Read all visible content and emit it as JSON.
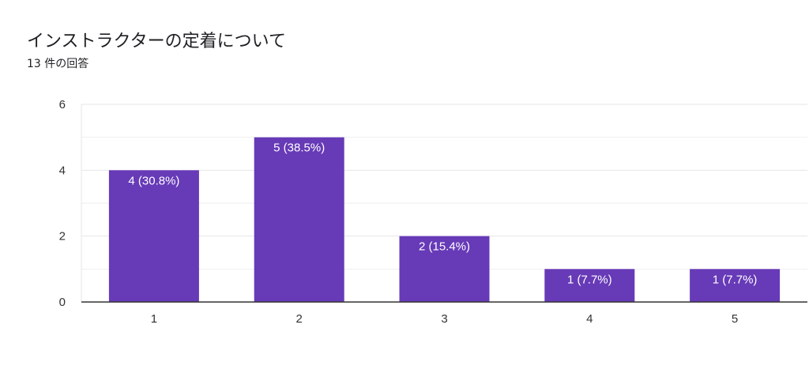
{
  "header": {
    "title": "インストラクターの定着について",
    "subtitle": "13 件の回答"
  },
  "chart_data": {
    "type": "bar",
    "categories": [
      "1",
      "2",
      "3",
      "4",
      "5"
    ],
    "values": [
      4,
      5,
      2,
      1,
      1
    ],
    "data_labels": [
      "4 (30.8%)",
      "5 (38.5%)",
      "2 (15.4%)",
      "1 (7.7%)",
      "1 (7.7%)"
    ],
    "y_ticks": [
      "0",
      "2",
      "4",
      "6"
    ],
    "ylim": [
      0,
      6
    ],
    "grid": true,
    "bar_color": "#673ab7",
    "grid_color": "#e6e6e6",
    "axis_color": "#333333"
  }
}
